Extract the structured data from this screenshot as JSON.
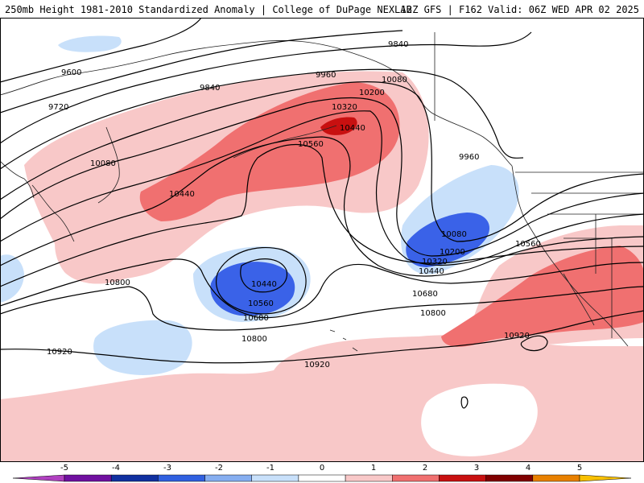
{
  "header": {
    "left": "250mb Height 1981-2010 Standardized Anomaly | College of DuPage NEXLAB",
    "right": "12Z GFS | F162 Valid: 06Z WED APR 02 2025"
  },
  "contour_labels": [
    "9600",
    "9720",
    "9840",
    "9840",
    "9960",
    "9960",
    "10080",
    "10080",
    "10080",
    "10200",
    "10200",
    "10320",
    "10320",
    "10440",
    "10440",
    "10440",
    "10440",
    "10560",
    "10560",
    "10560",
    "10680",
    "10680",
    "10800",
    "10800",
    "10800",
    "10920",
    "10920",
    "10920"
  ],
  "colorbar": {
    "ticks": [
      "-5",
      "-4",
      "-3",
      "-2",
      "-1",
      "0",
      "1",
      "2",
      "3",
      "4",
      "5"
    ],
    "colors": [
      "#b040c0",
      "#7010a0",
      "#1030a0",
      "#3060e0",
      "#86aef0",
      "#c8e0fa",
      "#ffffff",
      "#f8c8c8",
      "#f07070",
      "#c81010",
      "#800000",
      "#e88000",
      "#f8c000"
    ]
  },
  "colors": {
    "neg_light": "#c8e0fa",
    "neg_mid": "#86aef0",
    "neg_strong": "#3a62e8",
    "pos_light": "#f8c8c8",
    "pos_mid": "#f07070",
    "pos_strong": "#c81010"
  }
}
